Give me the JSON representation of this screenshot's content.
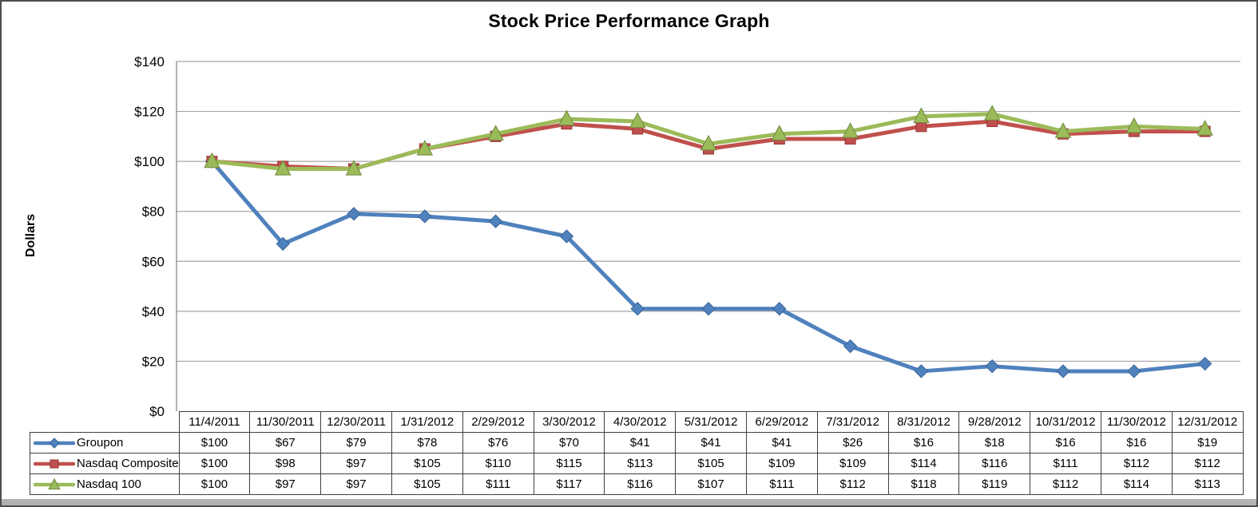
{
  "chart_data": {
    "type": "line",
    "title": "Stock Price Performance Graph",
    "ylabel": "Dollars",
    "xlabel": "",
    "value_prefix": "$",
    "ylim": [
      0,
      140
    ],
    "ytick_step": 20,
    "grid": true,
    "legend_position": "table-left",
    "categories": [
      "11/4/2011",
      "11/30/2011",
      "12/30/2011",
      "1/31/2012",
      "2/29/2012",
      "3/30/2012",
      "4/30/2012",
      "5/31/2012",
      "6/29/2012",
      "7/31/2012",
      "8/31/2012",
      "9/28/2012",
      "10/31/2012",
      "11/30/2012",
      "12/31/2012"
    ],
    "series": [
      {
        "name": "Groupon",
        "marker": "diamond",
        "color": "#4F81BD",
        "edge_color": "#3A679C",
        "values": [
          100,
          67,
          79,
          78,
          76,
          70,
          41,
          41,
          41,
          26,
          16,
          18,
          16,
          16,
          19
        ]
      },
      {
        "name": "Nasdaq Composite",
        "marker": "square",
        "color": "#C0504D",
        "edge_color": "#963634",
        "values": [
          100,
          98,
          97,
          105,
          110,
          115,
          113,
          105,
          109,
          109,
          114,
          116,
          111,
          112,
          112
        ]
      },
      {
        "name": "Nasdaq 100",
        "marker": "triangle",
        "color": "#9BBB59",
        "edge_color": "#71893F",
        "values": [
          100,
          97,
          97,
          105,
          111,
          117,
          116,
          107,
          111,
          112,
          118,
          119,
          112,
          114,
          113
        ]
      }
    ],
    "layout": {
      "gridline_color": "#A6A6A6",
      "axis_color": "#808080",
      "table_border_color": "#404040",
      "frame_border_color": "#4D4D4D",
      "frame_shadow_color": "#B3B3B3",
      "background": "#FFFFFF",
      "tick_label_color": "#000000"
    }
  }
}
